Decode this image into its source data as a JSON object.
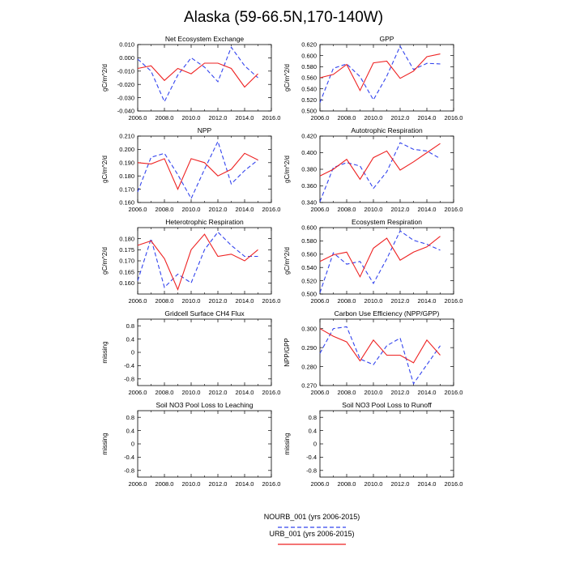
{
  "title": "Alaska (59-66.5N,170-140W)",
  "legend": [
    {
      "label": "NOURB_001 (yrs 2006-2015)",
      "color": "#3344ee",
      "dash": true
    },
    {
      "label": "URB_001 (yrs 2006-2015)",
      "color": "#ee2222",
      "dash": false
    }
  ],
  "chart_data": [
    {
      "type": "line",
      "title": "Net Ecosystem Exchange",
      "ylabel": "gC/m^2/d",
      "xlim": [
        2006,
        2016
      ],
      "ylim": [
        -0.04,
        0.01
      ],
      "xticks": [
        "2006.0",
        "2008.0",
        "2010.0",
        "2012.0",
        "2014.0",
        "2016.0"
      ],
      "yticks": [
        "0.010",
        "0.000",
        "-0.010",
        "-0.020",
        "-0.030",
        "-0.040"
      ],
      "x": [
        2006,
        2007,
        2008,
        2009,
        2010,
        2011,
        2012,
        2013,
        2014,
        2015
      ],
      "series": [
        {
          "name": "NOURB_001 (yrs 2006-2015)",
          "color": "#3344ee",
          "dash": true,
          "values": [
            -0.001,
            -0.01,
            -0.033,
            -0.013,
            0.0,
            -0.007,
            -0.018,
            0.008,
            -0.006,
            -0.015
          ]
        },
        {
          "name": "URB_001 (yrs 2006-2015)",
          "color": "#ee2222",
          "dash": false,
          "values": [
            -0.008,
            -0.006,
            -0.017,
            -0.008,
            -0.012,
            -0.004,
            -0.004,
            -0.008,
            -0.022,
            -0.012
          ]
        }
      ]
    },
    {
      "type": "line",
      "title": "GPP",
      "ylabel": "gC/m^2/d",
      "xlim": [
        2006,
        2016
      ],
      "ylim": [
        0.5,
        0.62
      ],
      "xticks": [
        "2006.0",
        "2008.0",
        "2010.0",
        "2012.0",
        "2014.0",
        "2016.0"
      ],
      "yticks": [
        "0.620",
        "0.600",
        "0.580",
        "0.560",
        "0.540",
        "0.520",
        "0.500"
      ],
      "x": [
        2006,
        2007,
        2008,
        2009,
        2010,
        2011,
        2012,
        2013,
        2014,
        2015
      ],
      "series": [
        {
          "name": "NOURB_001 (yrs 2006-2015)",
          "color": "#3344ee",
          "dash": true,
          "values": [
            0.515,
            0.577,
            0.585,
            0.562,
            0.52,
            0.563,
            0.617,
            0.575,
            0.586,
            0.585
          ]
        },
        {
          "name": "URB_001 (yrs 2006-2015)",
          "color": "#ee2222",
          "dash": false,
          "values": [
            0.56,
            0.566,
            0.584,
            0.537,
            0.587,
            0.59,
            0.559,
            0.572,
            0.598,
            0.603
          ]
        }
      ]
    },
    {
      "type": "line",
      "title": "NPP",
      "ylabel": "gC/m^2/d",
      "xlim": [
        2006,
        2016
      ],
      "ylim": [
        0.16,
        0.21
      ],
      "xticks": [
        "2006.0",
        "2008.0",
        "2010.0",
        "2012.0",
        "2014.0",
        "2016.0"
      ],
      "yticks": [
        "0.210",
        "0.200",
        "0.190",
        "0.180",
        "0.170",
        "0.160"
      ],
      "x": [
        2006,
        2007,
        2008,
        2009,
        2010,
        2011,
        2012,
        2013,
        2014,
        2015
      ],
      "series": [
        {
          "name": "NOURB_001 (yrs 2006-2015)",
          "color": "#3344ee",
          "dash": true,
          "values": [
            0.168,
            0.194,
            0.197,
            0.181,
            0.163,
            0.185,
            0.206,
            0.174,
            0.184,
            0.192
          ]
        },
        {
          "name": "URB_001 (yrs 2006-2015)",
          "color": "#ee2222",
          "dash": false,
          "values": [
            0.19,
            0.189,
            0.193,
            0.17,
            0.193,
            0.19,
            0.18,
            0.185,
            0.197,
            0.192
          ]
        }
      ]
    },
    {
      "type": "line",
      "title": "Autotrophic Respiration",
      "ylabel": "gC/m^2/d",
      "xlim": [
        2006,
        2016
      ],
      "ylim": [
        0.34,
        0.42
      ],
      "xticks": [
        "2006.0",
        "2008.0",
        "2010.0",
        "2012.0",
        "2014.0",
        "2016.0"
      ],
      "yticks": [
        "0.420",
        "0.400",
        "0.380",
        "0.360",
        "0.340"
      ],
      "x": [
        2006,
        2007,
        2008,
        2009,
        2010,
        2011,
        2012,
        2013,
        2014,
        2015
      ],
      "series": [
        {
          "name": "NOURB_001 (yrs 2006-2015)",
          "color": "#3344ee",
          "dash": true,
          "values": [
            0.341,
            0.382,
            0.388,
            0.384,
            0.357,
            0.377,
            0.412,
            0.404,
            0.402,
            0.393
          ]
        },
        {
          "name": "URB_001 (yrs 2006-2015)",
          "color": "#ee2222",
          "dash": false,
          "values": [
            0.372,
            0.38,
            0.392,
            0.368,
            0.394,
            0.402,
            0.379,
            0.389,
            0.4,
            0.411
          ]
        }
      ]
    },
    {
      "type": "line",
      "title": "Heterotrophic Respiration",
      "ylabel": "gC/m^2/d",
      "xlim": [
        2006,
        2016
      ],
      "ylim": [
        0.155,
        0.185
      ],
      "xticks": [
        "2006.0",
        "2008.0",
        "2010.0",
        "2012.0",
        "2014.0",
        "2016.0"
      ],
      "yticks": [
        "0.180",
        "0.175",
        "0.170",
        "0.165",
        "0.160"
      ],
      "x": [
        2006,
        2007,
        2008,
        2009,
        2010,
        2011,
        2012,
        2013,
        2014,
        2015
      ],
      "series": [
        {
          "name": "NOURB_001 (yrs 2006-2015)",
          "color": "#3344ee",
          "dash": true,
          "values": [
            0.161,
            0.18,
            0.158,
            0.164,
            0.16,
            0.175,
            0.183,
            0.177,
            0.172,
            0.172
          ]
        },
        {
          "name": "URB_001 (yrs 2006-2015)",
          "color": "#ee2222",
          "dash": false,
          "values": [
            0.177,
            0.179,
            0.171,
            0.157,
            0.175,
            0.182,
            0.172,
            0.173,
            0.17,
            0.175
          ]
        }
      ]
    },
    {
      "type": "line",
      "title": "Ecosystem Respiration",
      "ylabel": "gC/m^2/d",
      "xlim": [
        2006,
        2016
      ],
      "ylim": [
        0.5,
        0.6
      ],
      "xticks": [
        "2006.0",
        "2008.0",
        "2010.0",
        "2012.0",
        "2014.0",
        "2016.0"
      ],
      "yticks": [
        "0.600",
        "0.580",
        "0.560",
        "0.540",
        "0.520",
        "0.500"
      ],
      "x": [
        2006,
        2007,
        2008,
        2009,
        2010,
        2011,
        2012,
        2013,
        2014,
        2015
      ],
      "series": [
        {
          "name": "NOURB_001 (yrs 2006-2015)",
          "color": "#3344ee",
          "dash": true,
          "values": [
            0.502,
            0.562,
            0.545,
            0.549,
            0.516,
            0.553,
            0.595,
            0.581,
            0.575,
            0.566
          ]
        },
        {
          "name": "URB_001 (yrs 2006-2015)",
          "color": "#ee2222",
          "dash": false,
          "values": [
            0.549,
            0.559,
            0.563,
            0.526,
            0.569,
            0.584,
            0.551,
            0.563,
            0.571,
            0.587
          ]
        }
      ]
    },
    {
      "type": "line",
      "title": "Gridcell Surface CH4 Flux",
      "ylabel": "missing",
      "xlim": [
        2006,
        2016
      ],
      "ylim": [
        -1,
        1
      ],
      "xticks": [
        "2006.0",
        "2008.0",
        "2010.0",
        "2012.0",
        "2014.0",
        "2016.0"
      ],
      "yticks": [
        "0.8",
        "0.4",
        "0",
        "-0.4",
        "-0.8"
      ],
      "x": [],
      "series": []
    },
    {
      "type": "line",
      "title": "Carbon Use Efficiency (NPP/GPP)",
      "ylabel": "NPP/GPP",
      "xlim": [
        2006,
        2016
      ],
      "ylim": [
        0.27,
        0.305
      ],
      "xticks": [
        "2006.0",
        "2008.0",
        "2010.0",
        "2012.0",
        "2014.0",
        "2016.0"
      ],
      "yticks": [
        "0.300",
        "0.290",
        "0.280",
        "0.270"
      ],
      "x": [
        2006,
        2007,
        2008,
        2009,
        2010,
        2011,
        2012,
        2013,
        2014,
        2015
      ],
      "series": [
        {
          "name": "NOURB_001 (yrs 2006-2015)",
          "color": "#3344ee",
          "dash": true,
          "values": [
            0.287,
            0.3,
            0.301,
            0.284,
            0.281,
            0.291,
            0.295,
            0.271,
            0.281,
            0.291
          ]
        },
        {
          "name": "URB_001 (yrs 2006-2015)",
          "color": "#ee2222",
          "dash": false,
          "values": [
            0.3,
            0.296,
            0.293,
            0.283,
            0.294,
            0.286,
            0.286,
            0.282,
            0.294,
            0.286
          ]
        }
      ]
    },
    {
      "type": "line",
      "title": "Soil NO3 Pool Loss to Leaching",
      "ylabel": "missing",
      "xlim": [
        2006,
        2016
      ],
      "ylim": [
        -1,
        1
      ],
      "xticks": [
        "2006.0",
        "2008.0",
        "2010.0",
        "2012.0",
        "2014.0",
        "2016.0"
      ],
      "yticks": [
        "0.8",
        "0.4",
        "0",
        "-0.4",
        "-0.8"
      ],
      "x": [],
      "series": []
    },
    {
      "type": "line",
      "title": "Soil NO3 Pool Loss to Runoff",
      "ylabel": "missing",
      "xlim": [
        2006,
        2016
      ],
      "ylim": [
        -1,
        1
      ],
      "xticks": [
        "2006.0",
        "2008.0",
        "2010.0",
        "2012.0",
        "2014.0",
        "2016.0"
      ],
      "yticks": [
        "0.8",
        "0.4",
        "0",
        "-0.4",
        "-0.8"
      ],
      "x": [],
      "series": []
    }
  ]
}
